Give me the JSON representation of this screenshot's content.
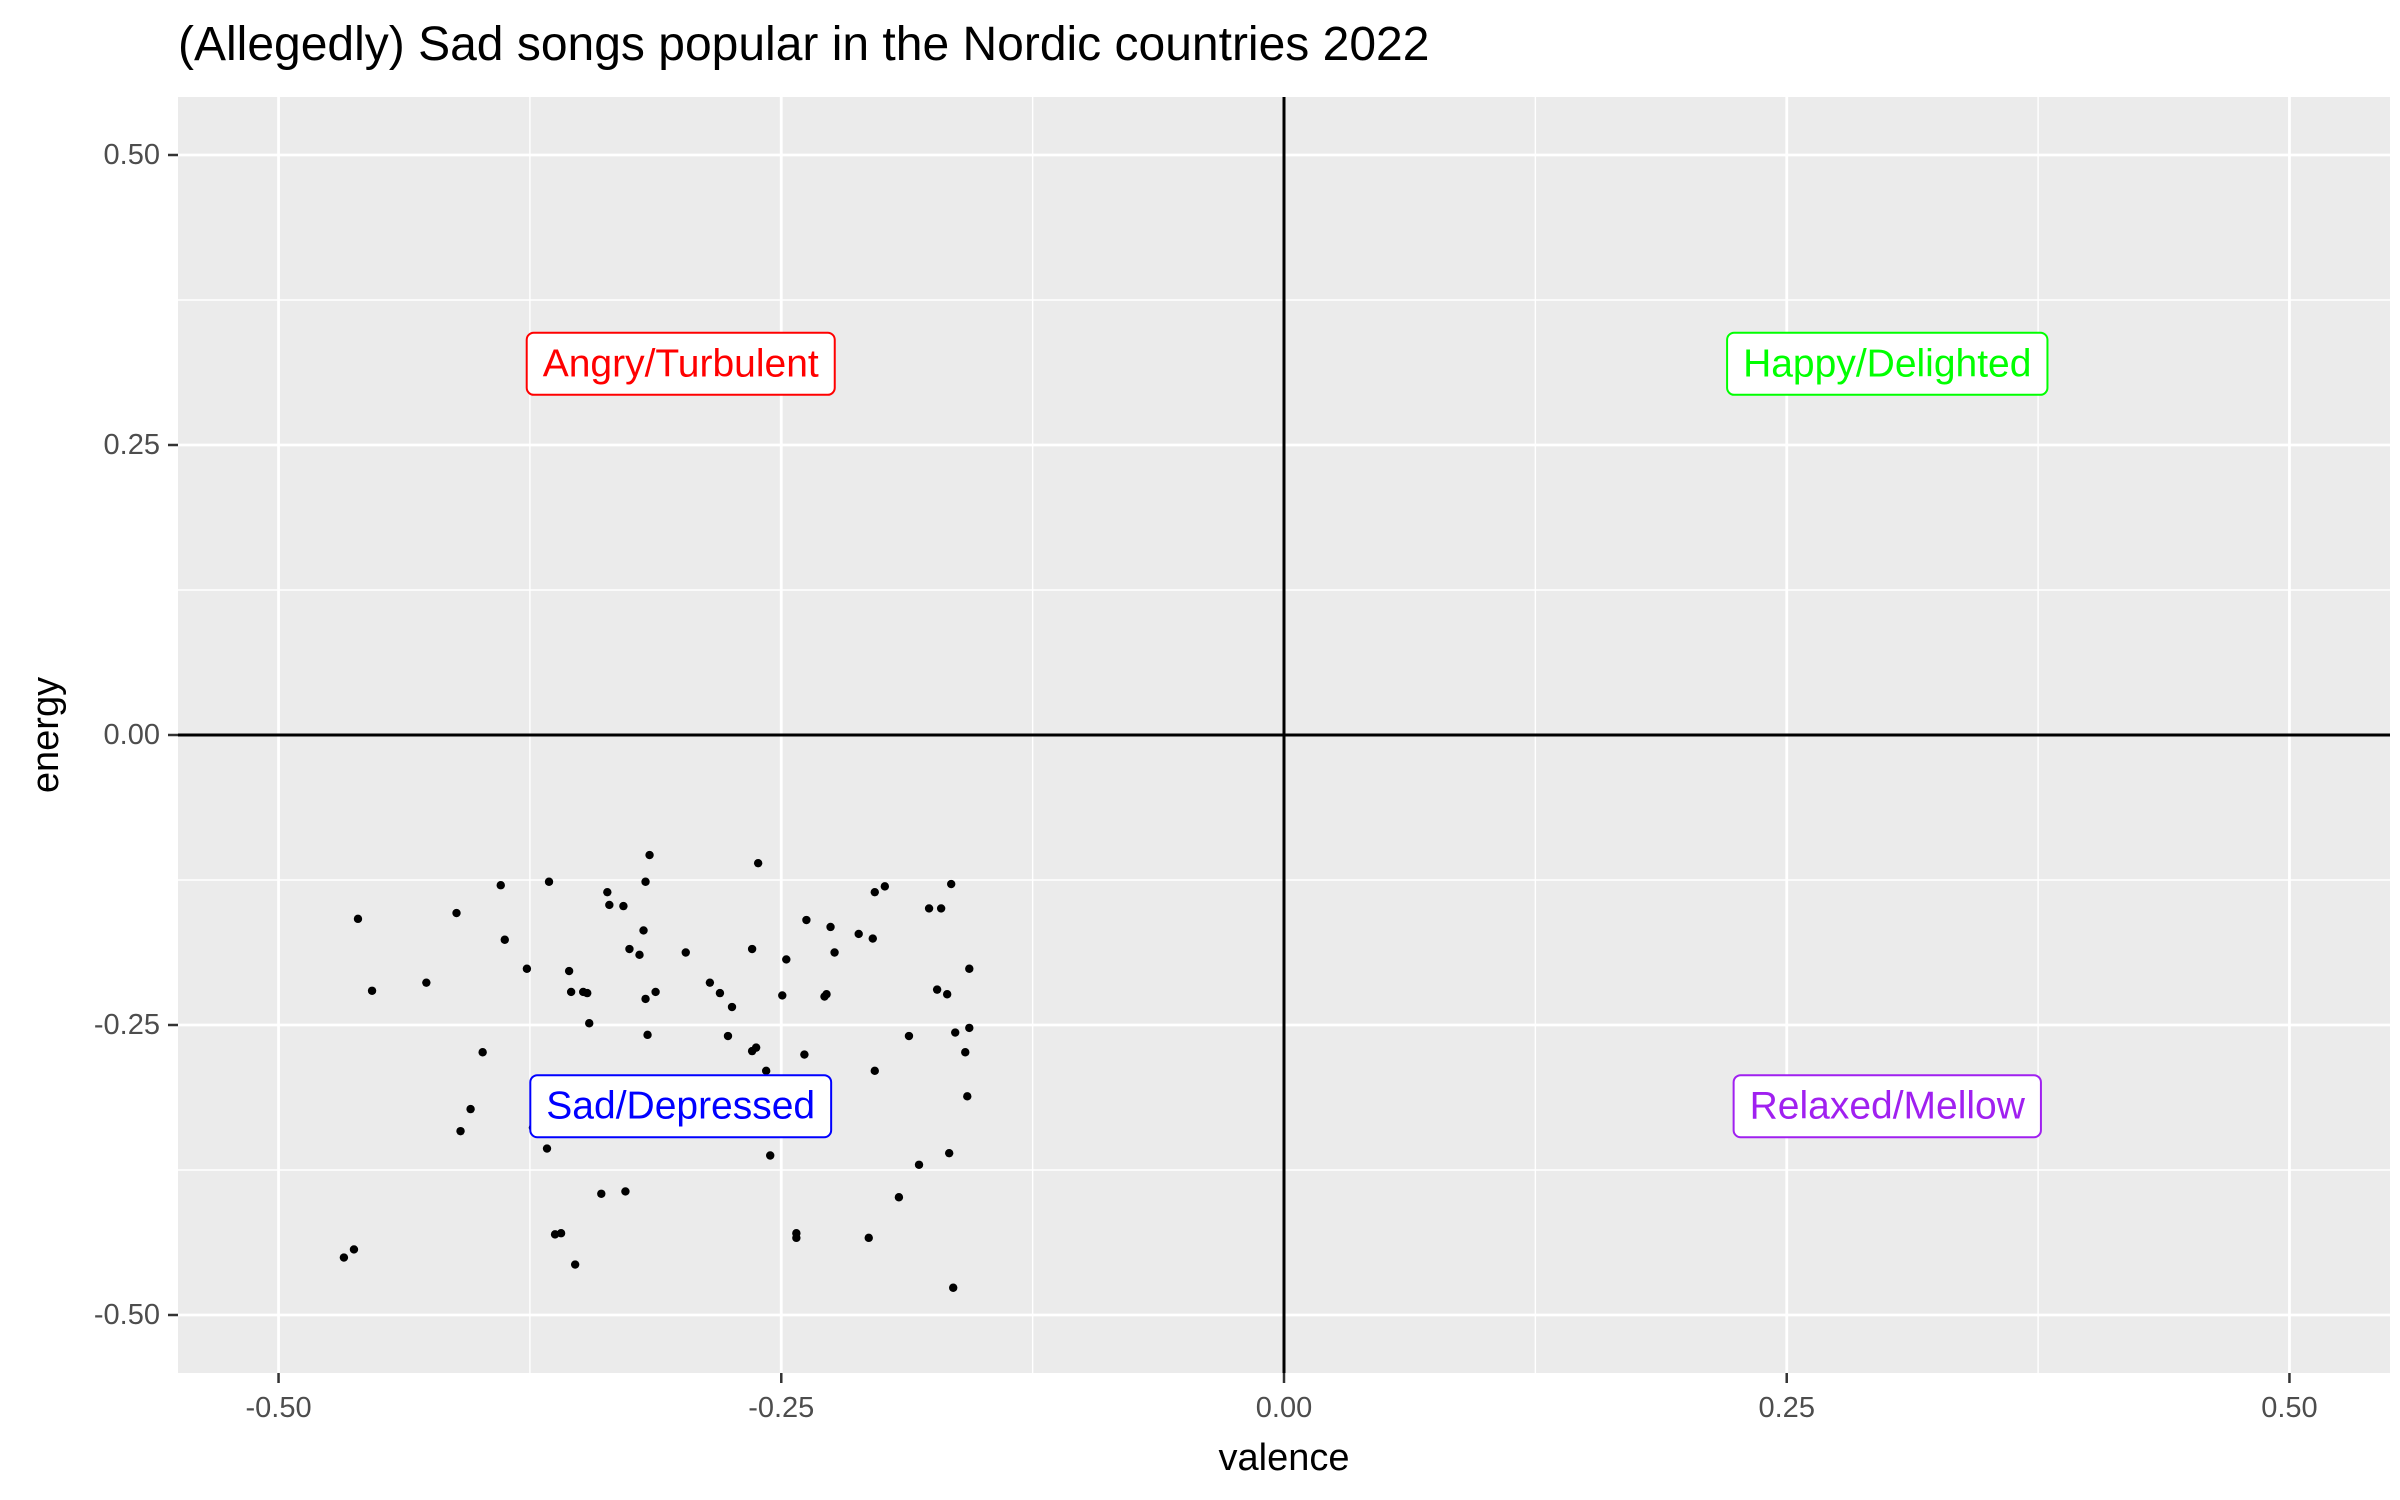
{
  "chart_data": {
    "type": "scatter",
    "title": "(Allegedly) Sad songs popular in the Nordic countries 2022",
    "xlabel": "valence",
    "ylabel": "energy",
    "xlim": [
      -0.55,
      0.55
    ],
    "ylim": [
      -0.55,
      0.55
    ],
    "x_ticks": [
      -0.5,
      -0.25,
      0,
      0.25,
      0.5
    ],
    "x_tick_labels": [
      "-0.50",
      "-0.25",
      "0.00",
      "0.25",
      "0.50"
    ],
    "y_ticks": [
      -0.5,
      -0.25,
      0,
      0.25,
      0.5
    ],
    "y_tick_labels": [
      "-0.50",
      "-0.25",
      "0.00",
      "0.25",
      "0.50"
    ],
    "grid": true,
    "reference_lines": {
      "x": 0,
      "y": 0
    },
    "background_color": "#ebebeb",
    "grid_color": "#ffffff",
    "point_color": "#000000",
    "quadrant_labels": [
      {
        "text": "Angry/Turbulent",
        "x": -0.3,
        "y": 0.32,
        "color": "#ff0000"
      },
      {
        "text": "Happy/Delighted",
        "x": 0.3,
        "y": 0.32,
        "color": "#00ff00"
      },
      {
        "text": "Sad/Depressed",
        "x": -0.3,
        "y": -0.32,
        "color": "#0000ff"
      },
      {
        "text": "Relaxed/Mellow",
        "x": 0.3,
        "y": -0.32,
        "color": "#a020f0"
      }
    ],
    "points": [
      [
        -0.4605,
        -0.1585
      ],
      [
        -0.4535,
        -0.2205
      ],
      [
        -0.4675,
        -0.4505
      ],
      [
        -0.4625,
        -0.4435
      ],
      [
        -0.4265,
        -0.2135
      ],
      [
        -0.4115,
        -0.1535
      ],
      [
        -0.4095,
        -0.3415
      ],
      [
        -0.4045,
        -0.3225
      ],
      [
        -0.3985,
        -0.2735
      ],
      [
        -0.3895,
        -0.1295
      ],
      [
        -0.3875,
        -0.1765
      ],
      [
        -0.3765,
        -0.2015
      ],
      [
        -0.3735,
        -0.3385
      ],
      [
        -0.3655,
        -0.1265
      ],
      [
        -0.3665,
        -0.3565
      ],
      [
        -0.3625,
        -0.4305
      ],
      [
        -0.3595,
        -0.4295
      ],
      [
        -0.3555,
        -0.2035
      ],
      [
        -0.3545,
        -0.2215
      ],
      [
        -0.3525,
        -0.4565
      ],
      [
        -0.3485,
        -0.2215
      ],
      [
        -0.3465,
        -0.2225
      ],
      [
        -0.3455,
        -0.2485
      ],
      [
        -0.3395,
        -0.3955
      ],
      [
        -0.3365,
        -0.1355
      ],
      [
        -0.3355,
        -0.1465
      ],
      [
        -0.3285,
        -0.1475
      ],
      [
        -0.3275,
        -0.3935
      ],
      [
        -0.3255,
        -0.1845
      ],
      [
        -0.3205,
        -0.1895
      ],
      [
        -0.3185,
        -0.1685
      ],
      [
        -0.3175,
        -0.2275
      ],
      [
        -0.3165,
        -0.2585
      ],
      [
        -0.3175,
        -0.1265
      ],
      [
        -0.3155,
        -0.1035
      ],
      [
        -0.3125,
        -0.2215
      ],
      [
        -0.2975,
        -0.1875
      ],
      [
        -0.2855,
        -0.2135
      ],
      [
        -0.2805,
        -0.2225
      ],
      [
        -0.2765,
        -0.2595
      ],
      [
        -0.2745,
        -0.2345
      ],
      [
        -0.2645,
        -0.1845
      ],
      [
        -0.2645,
        -0.2725
      ],
      [
        -0.2625,
        -0.2695
      ],
      [
        -0.2615,
        -0.1105
      ],
      [
        -0.2575,
        -0.2895
      ],
      [
        -0.2555,
        -0.3625
      ],
      [
        -0.2495,
        -0.2245
      ],
      [
        -0.2475,
        -0.1935
      ],
      [
        -0.2425,
        -0.4295
      ],
      [
        -0.2425,
        -0.4335
      ],
      [
        -0.2385,
        -0.2755
      ],
      [
        -0.2375,
        -0.1595
      ],
      [
        -0.2285,
        -0.2255
      ],
      [
        -0.2275,
        -0.2235
      ],
      [
        -0.2255,
        -0.1655
      ],
      [
        -0.2235,
        -0.1875
      ],
      [
        -0.2115,
        -0.1715
      ],
      [
        -0.2065,
        -0.4335
      ],
      [
        -0.2045,
        -0.1755
      ],
      [
        -0.2035,
        -0.1355
      ],
      [
        -0.2035,
        -0.2895
      ],
      [
        -0.1985,
        -0.1305
      ],
      [
        -0.1915,
        -0.3985
      ],
      [
        -0.1865,
        -0.2595
      ],
      [
        -0.1815,
        -0.3705
      ],
      [
        -0.1765,
        -0.1495
      ],
      [
        -0.1725,
        -0.2195
      ],
      [
        -0.1705,
        -0.1495
      ],
      [
        -0.1675,
        -0.2235
      ],
      [
        -0.1665,
        -0.3605
      ],
      [
        -0.1655,
        -0.1285
      ],
      [
        -0.1645,
        -0.4765
      ],
      [
        -0.1635,
        -0.2565
      ],
      [
        -0.1585,
        -0.2735
      ],
      [
        -0.1575,
        -0.3115
      ],
      [
        -0.1565,
        -0.2015
      ],
      [
        -0.1565,
        -0.2525
      ]
    ]
  }
}
